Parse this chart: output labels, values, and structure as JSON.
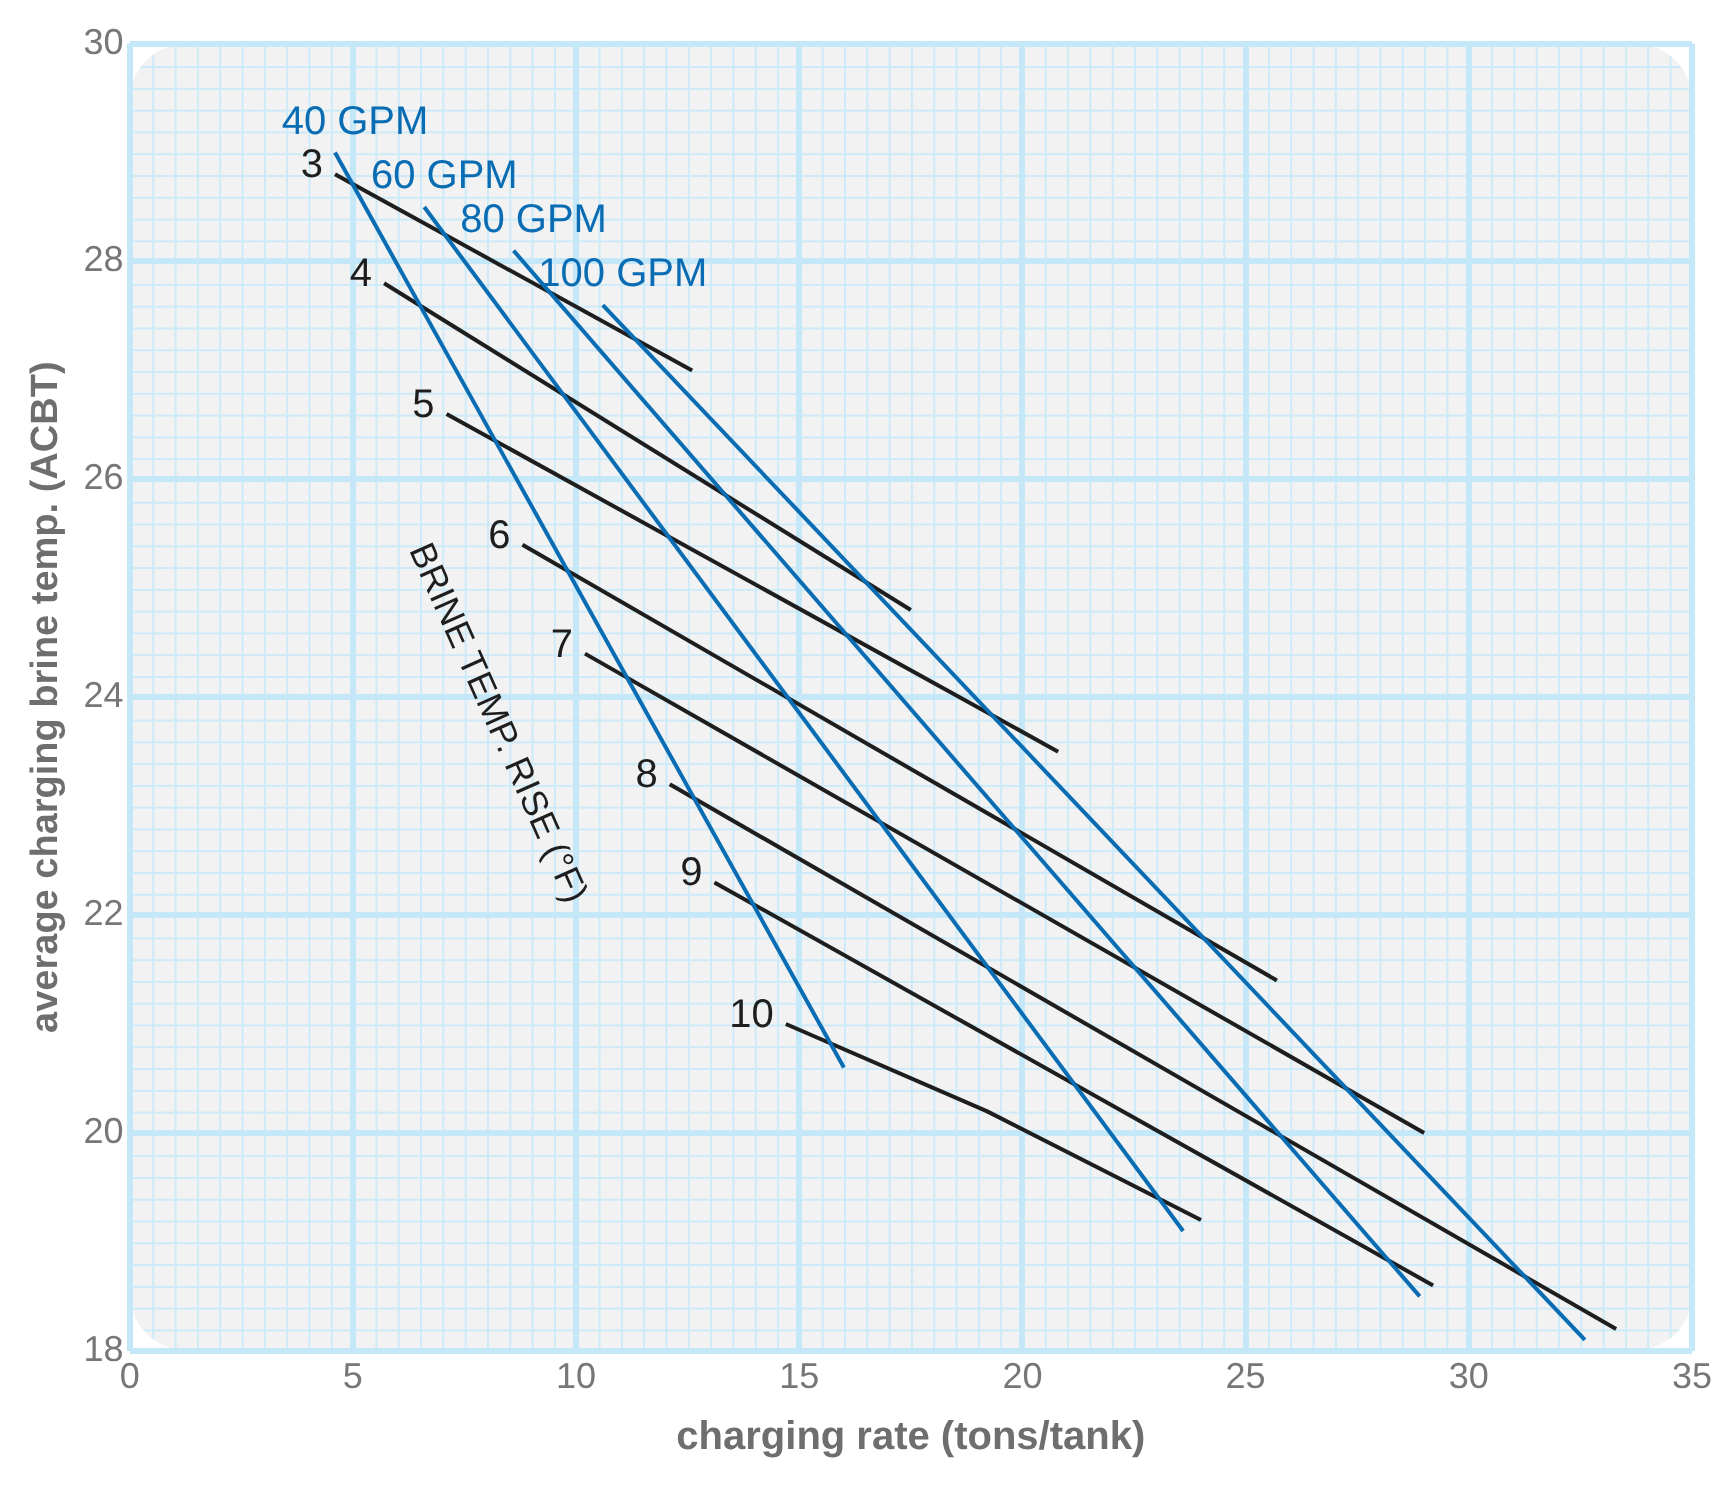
{
  "chart_data": {
    "type": "line",
    "xlabel": "charging rate (tons/tank)",
    "ylabel": "average charging brine temp. (ACBT)",
    "xlim": [
      0,
      35
    ],
    "xticks": [
      0,
      5,
      10,
      15,
      20,
      25,
      30,
      35
    ],
    "ylim": [
      18,
      30
    ],
    "yticks": [
      18,
      20,
      22,
      24,
      26,
      28,
      30
    ],
    "grid": true,
    "legend": false,
    "marker": "none",
    "line_style": "solid",
    "annotations": [
      "BRINE TEMP. RISE (°F)"
    ],
    "series": [
      {
        "name": "40 GPM",
        "color": "#0a6db3",
        "x": [
          4.6,
          16.0
        ],
        "values": [
          29.0,
          20.6
        ]
      },
      {
        "name": "60 GPM",
        "color": "#0a6db3",
        "x": [
          6.6,
          23.6
        ],
        "values": [
          28.5,
          19.1
        ]
      },
      {
        "name": "80 GPM",
        "color": "#0a6db3",
        "x": [
          8.6,
          28.9
        ],
        "values": [
          28.1,
          18.5
        ]
      },
      {
        "name": "100 GPM",
        "color": "#0a6db3",
        "x": [
          10.6,
          32.6
        ],
        "values": [
          27.6,
          18.1
        ]
      },
      {
        "name": "3",
        "color": "#1e1e1e",
        "x": [
          4.6,
          12.6
        ],
        "values": [
          28.8,
          27.0
        ]
      },
      {
        "name": "4",
        "color": "#1e1e1e",
        "x": [
          5.7,
          17.5
        ],
        "values": [
          27.8,
          24.8
        ]
      },
      {
        "name": "5",
        "color": "#1e1e1e",
        "x": [
          7.1,
          20.8
        ],
        "values": [
          26.6,
          23.5
        ]
      },
      {
        "name": "6",
        "color": "#1e1e1e",
        "x": [
          8.8,
          25.7
        ],
        "values": [
          25.4,
          21.4
        ]
      },
      {
        "name": "7",
        "color": "#1e1e1e",
        "x": [
          10.2,
          29.0
        ],
        "values": [
          24.4,
          20.0
        ]
      },
      {
        "name": "8",
        "color": "#1e1e1e",
        "x": [
          12.1,
          33.3
        ],
        "values": [
          23.2,
          18.2
        ]
      },
      {
        "name": "9",
        "color": "#1e1e1e",
        "x": [
          13.1,
          29.2
        ],
        "values": [
          22.3,
          18.6
        ]
      },
      {
        "name": "10",
        "color": "#1e1e1e",
        "x": [
          14.7,
          19.2,
          24.0
        ],
        "values": [
          21.0,
          20.2,
          19.2
        ]
      }
    ]
  }
}
